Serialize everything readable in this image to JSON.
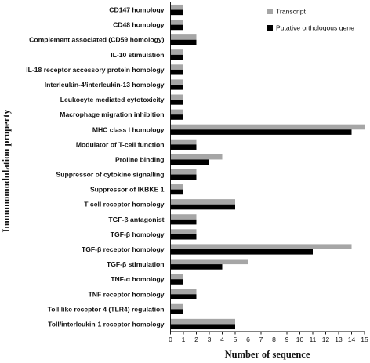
{
  "chart_data": {
    "type": "bar",
    "orientation": "horizontal",
    "xlabel": "Number of sequence",
    "ylabel": "Immunomodulation property",
    "xlim": [
      0,
      15
    ],
    "xticks": [
      "0",
      "1",
      "2",
      "3",
      "4",
      "5",
      "6",
      "7",
      "8",
      "9",
      "10",
      "11",
      "12",
      "13",
      "14",
      "15"
    ],
    "grid": false,
    "legend_position": "top-right",
    "categories": [
      "CD147 homology",
      "CD48 homology",
      "Complement associated (CD59 homology)",
      "IL-10 stimulation",
      "IL-18 receptor accessory protein homology",
      "Interleukin-4/interleukin-13 homology",
      "Leukocyte mediated cytotoxicity",
      "Macrophage migration inhibition",
      "MHC class I homology",
      "Modulator of T-cell function",
      "Proline binding",
      "Suppressor of cytokine signalling",
      "Suppressor of IKBKE 1",
      "T-cell receptor homology",
      "TGF-β antagonist",
      "TGF-β homology",
      "TGF-β receptor homology",
      "TGF-β stimulation",
      "TNF-α homology",
      "TNF receptor homology",
      "Toll like receptor 4 (TLR4) regulation",
      "Toll/interleukin-1 receptor homology"
    ],
    "series": [
      {
        "name": "Transcript",
        "color": "#a6a6a6",
        "values": [
          1,
          1,
          2,
          1,
          1,
          1,
          1,
          1,
          15,
          2,
          4,
          2,
          1,
          5,
          2,
          2,
          14,
          6,
          1,
          2,
          1,
          5
        ]
      },
      {
        "name": "Putative orthologous gene",
        "color": "#000000",
        "values": [
          1,
          1,
          2,
          1,
          1,
          1,
          1,
          1,
          14,
          2,
          3,
          2,
          1,
          5,
          2,
          2,
          11,
          4,
          1,
          2,
          1,
          5
        ]
      }
    ]
  }
}
